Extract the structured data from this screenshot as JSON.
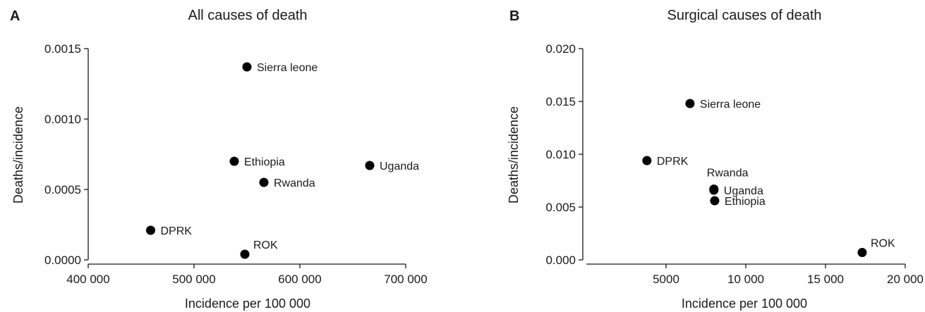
{
  "chart_data": [
    {
      "panel": "A",
      "type": "scatter",
      "title": "All causes of death",
      "xlabel": "Incidence per 100 000",
      "ylabel": "Deaths/incidence",
      "xlim": [
        400000,
        700000
      ],
      "ylim": [
        0,
        0.0015
      ],
      "xticks": [
        {
          "value": 400000,
          "label": "400 000"
        },
        {
          "value": 500000,
          "label": "500 000"
        },
        {
          "value": 600000,
          "label": "600 000"
        },
        {
          "value": 700000,
          "label": "700 000"
        }
      ],
      "yticks": [
        {
          "value": 0,
          "label": "0.0000"
        },
        {
          "value": 0.0005,
          "label": "0.0005"
        },
        {
          "value": 0.001,
          "label": "0.0010"
        },
        {
          "value": 0.0015,
          "label": "0.0015"
        }
      ],
      "grid": false,
      "points": [
        {
          "label": "Sierra leone",
          "x": 550000,
          "y": 0.00137,
          "pos": "right"
        },
        {
          "label": "Ethiopia",
          "x": 538000,
          "y": 0.0007,
          "pos": "right"
        },
        {
          "label": "Uganda",
          "x": 666000,
          "y": 0.00067,
          "pos": "right"
        },
        {
          "label": "Rwanda",
          "x": 566000,
          "y": 0.00055,
          "pos": "right"
        },
        {
          "label": "DPRK",
          "x": 459000,
          "y": 0.00021,
          "pos": "right"
        },
        {
          "label": "ROK",
          "x": 548000,
          "y": 4e-05,
          "pos": "above-right"
        }
      ]
    },
    {
      "panel": "B",
      "type": "scatter",
      "title": "Surgical causes of death",
      "xlabel": "Incidence per 100 000",
      "ylabel": "Deaths/incidence",
      "xlim": [
        0,
        20000
      ],
      "ylim": [
        0,
        0.02
      ],
      "xticks": [
        {
          "value": 5000,
          "label": "5000"
        },
        {
          "value": 10000,
          "label": "10 000"
        },
        {
          "value": 15000,
          "label": "15 000"
        },
        {
          "value": 20000,
          "label": "20 000"
        }
      ],
      "yticks": [
        {
          "value": 0,
          "label": "0.000"
        },
        {
          "value": 0.005,
          "label": "0.005"
        },
        {
          "value": 0.01,
          "label": "0.010"
        },
        {
          "value": 0.015,
          "label": "0.015"
        },
        {
          "value": 0.02,
          "label": "0.020"
        }
      ],
      "grid": false,
      "points": [
        {
          "label": "Sierra leone",
          "x": 6500,
          "y": 0.0148,
          "pos": "right"
        },
        {
          "label": "DPRK",
          "x": 3800,
          "y": 0.0094,
          "pos": "right"
        },
        {
          "label": "Rwanda",
          "x": 8000,
          "y": 0.0067,
          "pos": "above-left"
        },
        {
          "label": "Uganda",
          "x": 8000,
          "y": 0.0066,
          "pos": "right"
        },
        {
          "label": "Ethiopia",
          "x": 8050,
          "y": 0.0056,
          "pos": "right"
        },
        {
          "label": "ROK",
          "x": 17300,
          "y": 0.0007,
          "pos": "above-right"
        }
      ]
    }
  ]
}
